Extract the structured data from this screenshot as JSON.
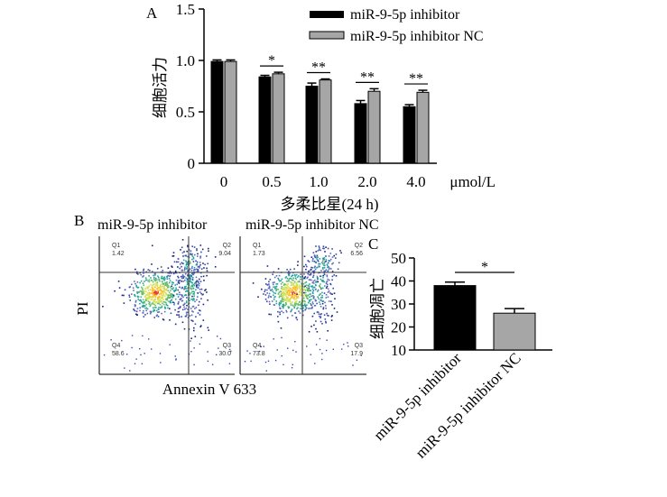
{
  "panels": {
    "a": {
      "label": "A"
    },
    "b": {
      "label": "B"
    },
    "c": {
      "label": "C"
    }
  },
  "chart_data": [
    {
      "id": "A",
      "type": "bar",
      "title": "",
      "xlabel": "多柔比星(24 h)",
      "x_unit": "μmol/L",
      "ylabel": "细胞活力",
      "ylim": [
        0,
        1.5
      ],
      "yticks": [
        "0",
        "0.5",
        "1.0",
        "1.5"
      ],
      "categories": [
        "0",
        "0.5",
        "1.0",
        "2.0",
        "4.0"
      ],
      "series": [
        {
          "name": "miR-9-5p inhibitor",
          "values": [
            0.99,
            0.84,
            0.75,
            0.58,
            0.55
          ],
          "errors": [
            0.015,
            0.015,
            0.03,
            0.03,
            0.02
          ],
          "color": "#000000"
        },
        {
          "name": "miR-9-5p inhibitor NC",
          "values": [
            0.99,
            0.87,
            0.81,
            0.7,
            0.69
          ],
          "errors": [
            0.015,
            0.015,
            0.01,
            0.025,
            0.02
          ],
          "color": "#a6a6a6"
        }
      ],
      "significance": [
        "",
        "*",
        "**",
        "**",
        "**"
      ],
      "legend_position": "top-right",
      "grid": false
    },
    {
      "id": "C",
      "type": "bar",
      "title": "",
      "xlabel": "",
      "ylabel": "细胞凋亡",
      "ylim": [
        10,
        50
      ],
      "yticks": [
        "10",
        "20",
        "30",
        "40",
        "50"
      ],
      "categories": [
        "miR-9-5p inhibitor",
        "miR-9-5p inhibitor NC"
      ],
      "values": [
        38,
        26
      ],
      "errors": [
        1.5,
        2
      ],
      "colors": [
        "#000000",
        "#a6a6a6"
      ],
      "significance": "*",
      "grid": false
    }
  ],
  "flow": {
    "titles": [
      "miR-9-5p inhibitor",
      "miR-9-5p inhibitor NC"
    ],
    "ylabel": "PI",
    "xlabel": "Annexin V 633",
    "plots": [
      {
        "quadrants": [
          {
            "name": "Q1",
            "value": "1.42"
          },
          {
            "name": "Q2",
            "value": "9.04"
          },
          {
            "name": "Q4",
            "value": "58.6"
          },
          {
            "name": "Q3",
            "value": "30.0"
          }
        ]
      },
      {
        "quadrants": [
          {
            "name": "Q1",
            "value": "1.73"
          },
          {
            "name": "Q2",
            "value": "6.56"
          },
          {
            "name": "Q4",
            "value": "73.8"
          },
          {
            "name": "Q3",
            "value": "17.9"
          }
        ]
      }
    ]
  }
}
